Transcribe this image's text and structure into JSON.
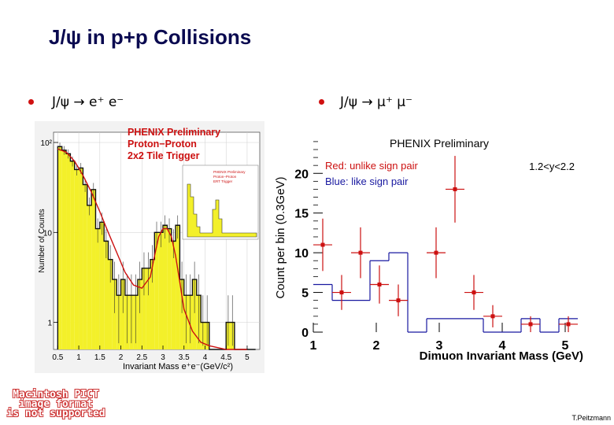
{
  "slide": {
    "title": "J/ψ in p+p Collisions",
    "bullet_left": "J/ψ → e⁺ e⁻",
    "bullet_right": "J/ψ → μ⁺ μ⁻",
    "credit": "T.Peitzmann",
    "placeholder_lines": [
      "Macintosh PICT",
      "image format",
      "is not supported"
    ]
  },
  "colors": {
    "fill": "#f3f02a",
    "red": "#cc1010",
    "blue": "#1818a0",
    "grid": "#cfcfcf"
  },
  "chart_data": [
    {
      "type": "bar",
      "title": "PHENIX Preliminary",
      "annotations": [
        "Proton−Proton",
        "2x2 Tile Trigger"
      ],
      "xlabel": "Invariant Mass e⁺e⁻(GeV/c²)",
      "ylabel": "Number of Counts",
      "yscale": "log",
      "xlim": [
        0.4,
        5.3
      ],
      "ylim": [
        0.5,
        130
      ],
      "xticks": [
        "0.5",
        "1",
        "1.5",
        "2",
        "2.5",
        "3",
        "3.5",
        "4",
        "4.5",
        "5"
      ],
      "xtick_values": [
        0.5,
        1,
        1.5,
        2,
        2.5,
        3,
        3.5,
        4,
        4.5,
        5
      ],
      "yticks": [
        "10²",
        "10",
        "1"
      ],
      "ytick_values": [
        100,
        10,
        1
      ],
      "bin_width": 0.1,
      "bins_x0": [
        0.5,
        0.6,
        0.7,
        0.8,
        0.9,
        1.0,
        1.1,
        1.2,
        1.3,
        1.4,
        1.5,
        1.6,
        1.7,
        1.8,
        1.9,
        2.0,
        2.1,
        2.2,
        2.3,
        2.4,
        2.5,
        2.6,
        2.7,
        2.8,
        2.9,
        3.0,
        3.1,
        3.2,
        3.3,
        3.4,
        3.5,
        3.6,
        3.7,
        3.8,
        3.9,
        4.0,
        4.1,
        4.2,
        4.3,
        4.4,
        4.5,
        4.6,
        4.7,
        4.8,
        4.9,
        5.0,
        5.1
      ],
      "counts": [
        90,
        82,
        75,
        62,
        50,
        52,
        34,
        20,
        30,
        11,
        13,
        8,
        5,
        3,
        2,
        3,
        2,
        2,
        2,
        3,
        4,
        4,
        5,
        10,
        10,
        12,
        11,
        8,
        12,
        3,
        2,
        2,
        3,
        2,
        1,
        1,
        0,
        0,
        0,
        0,
        1,
        1,
        0,
        0,
        0,
        0,
        0
      ],
      "fit_curve": {
        "name": "fit",
        "x": [
          0.5,
          0.7,
          0.9,
          1.1,
          1.3,
          1.5,
          1.7,
          1.9,
          2.1,
          2.3,
          2.5,
          2.7,
          2.8,
          2.9,
          3.0,
          3.1,
          3.2,
          3.3,
          3.4,
          3.5,
          3.7,
          3.9,
          4.1,
          4.5,
          5.0
        ],
        "y": [
          85,
          78,
          62,
          43,
          28,
          17,
          10,
          6,
          3.6,
          2.6,
          2.4,
          3.2,
          5.5,
          9,
          11,
          11,
          9,
          5.5,
          2.8,
          1.4,
          0.8,
          0.6,
          0.55,
          0.5,
          0.5
        ]
      },
      "inset": {
        "title": "PHENIX Preliminary",
        "annotations": [
          "Proton−Proton",
          "ERT Trigger"
        ]
      }
    },
    {
      "type": "scatter",
      "title": "PHENIX Preliminary",
      "xlabel": "Dimuon Invariant Mass (GeV)",
      "ylabel": "Count per bin (0.3GeV)",
      "xlim": [
        1,
        5.3
      ],
      "ylim": [
        0,
        23
      ],
      "xticks": [
        "1",
        "2",
        "3",
        "4",
        "5"
      ],
      "xtick_values": [
        1,
        2,
        3,
        4,
        5
      ],
      "yticks": [
        "0",
        "5",
        "10",
        "15",
        "20"
      ],
      "ytick_values": [
        0,
        5,
        10,
        15,
        20
      ],
      "annotations": [
        "1.2<y<2.2"
      ],
      "series": [
        {
          "name": "Red: unlike sign pair",
          "color": "#cc1010",
          "points": [
            {
              "x": 1.15,
              "y": 11,
              "xerr": 0.15,
              "yerr": 3.3
            },
            {
              "x": 1.45,
              "y": 5,
              "xerr": 0.15,
              "yerr": 2.2
            },
            {
              "x": 1.75,
              "y": 10,
              "xerr": 0.15,
              "yerr": 3.2
            },
            {
              "x": 2.05,
              "y": 6,
              "xerr": 0.15,
              "yerr": 2.4
            },
            {
              "x": 2.35,
              "y": 4,
              "xerr": 0.15,
              "yerr": 2.0
            },
            {
              "x": 2.95,
              "y": 10,
              "xerr": 0.15,
              "yerr": 3.2
            },
            {
              "x": 3.25,
              "y": 18,
              "xerr": 0.15,
              "yerr": 4.2
            },
            {
              "x": 3.55,
              "y": 5,
              "xerr": 0.15,
              "yerr": 2.2
            },
            {
              "x": 3.85,
              "y": 2,
              "xerr": 0.15,
              "yerr": 1.4
            },
            {
              "x": 4.45,
              "y": 1,
              "xerr": 0.15,
              "yerr": 1.0
            },
            {
              "x": 5.05,
              "y": 1,
              "xerr": 0.15,
              "yerr": 1.0
            }
          ]
        },
        {
          "name": "Blue: like sign pair",
          "color": "#1818a0",
          "type": "step",
          "bins": [
            {
              "x0": 1.0,
              "x1": 1.3,
              "y": 6
            },
            {
              "x0": 1.3,
              "x1": 1.6,
              "y": 4
            },
            {
              "x0": 1.6,
              "x1": 1.9,
              "y": 4
            },
            {
              "x0": 1.9,
              "x1": 2.2,
              "y": 9
            },
            {
              "x0": 2.2,
              "x1": 2.5,
              "y": 10
            },
            {
              "x0": 2.5,
              "x1": 2.8,
              "y": 0
            },
            {
              "x0": 2.8,
              "x1": 3.1,
              "y": 1.7
            },
            {
              "x0": 3.1,
              "x1": 3.4,
              "y": 1.7
            },
            {
              "x0": 3.4,
              "x1": 3.7,
              "y": 1.7
            },
            {
              "x0": 3.7,
              "x1": 4.0,
              "y": 0
            },
            {
              "x0": 4.0,
              "x1": 4.3,
              "y": 0
            },
            {
              "x0": 4.3,
              "x1": 4.6,
              "y": 1.7
            },
            {
              "x0": 4.6,
              "x1": 4.9,
              "y": 0
            },
            {
              "x0": 4.9,
              "x1": 5.2,
              "y": 1.7
            }
          ]
        }
      ]
    }
  ]
}
